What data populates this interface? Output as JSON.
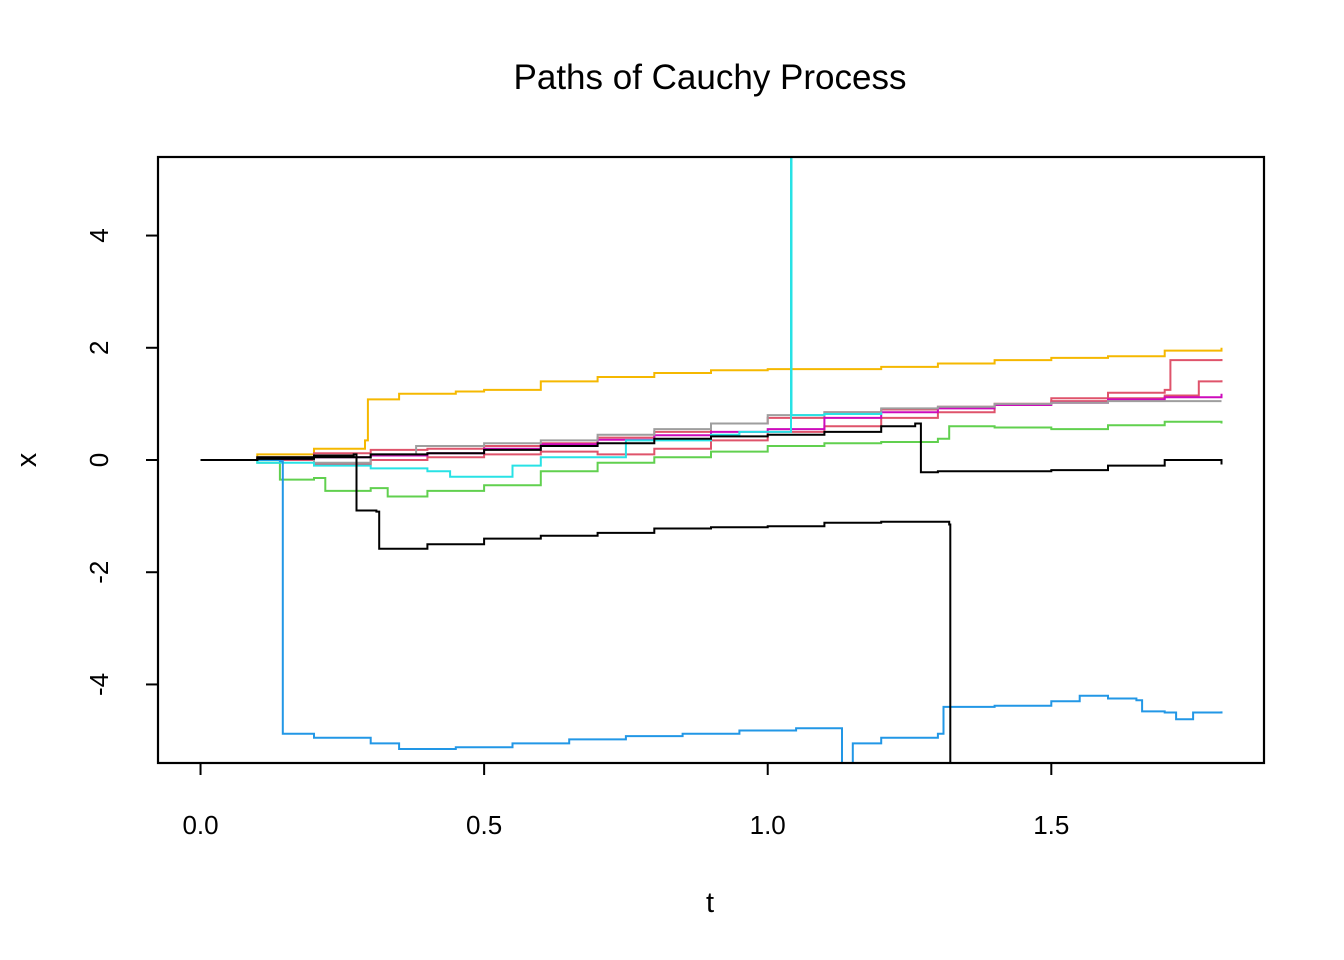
{
  "chart_data": {
    "type": "line",
    "title": "Paths of Cauchy Process",
    "xlabel": "t",
    "ylabel": "x",
    "xlim": [
      -0.075,
      1.875
    ],
    "ylim": [
      -5.4,
      5.4
    ],
    "xticks": [
      0.0,
      0.5,
      1.0,
      1.5
    ],
    "xtick_labels": [
      "0.0",
      "0.5",
      "1.0",
      "1.5"
    ],
    "yticks": [
      -4,
      -2,
      0,
      2,
      4
    ],
    "ytick_labels": [
      "-4",
      "-2",
      "0",
      "2",
      "4"
    ],
    "grid": false,
    "legend": "none",
    "series": [
      {
        "color": "#F5B800",
        "steps": [
          [
            0,
            0
          ],
          [
            0.1,
            0.1
          ],
          [
            0.2,
            0.2
          ],
          [
            0.29,
            0.35
          ],
          [
            0.295,
            1.08
          ],
          [
            0.35,
            1.18
          ],
          [
            0.45,
            1.22
          ],
          [
            0.5,
            1.25
          ],
          [
            0.6,
            1.4
          ],
          [
            0.7,
            1.48
          ],
          [
            0.8,
            1.55
          ],
          [
            0.9,
            1.6
          ],
          [
            1.0,
            1.62
          ],
          [
            1.1,
            1.62
          ],
          [
            1.2,
            1.66
          ],
          [
            1.3,
            1.72
          ],
          [
            1.4,
            1.78
          ],
          [
            1.5,
            1.82
          ],
          [
            1.6,
            1.85
          ],
          [
            1.7,
            1.95
          ],
          [
            1.8,
            2.0
          ]
        ]
      },
      {
        "color": "#DF536B",
        "steps": [
          [
            0,
            0
          ],
          [
            0.1,
            0.05
          ],
          [
            0.2,
            0.12
          ],
          [
            0.3,
            0.18
          ],
          [
            0.4,
            0.2
          ],
          [
            0.5,
            0.25
          ],
          [
            0.6,
            0.3
          ],
          [
            0.7,
            0.4
          ],
          [
            0.8,
            0.5
          ],
          [
            0.9,
            0.65
          ],
          [
            1.0,
            0.75
          ],
          [
            1.1,
            0.85
          ],
          [
            1.2,
            0.9
          ],
          [
            1.3,
            0.95
          ],
          [
            1.4,
            1.0
          ],
          [
            1.5,
            1.1
          ],
          [
            1.6,
            1.2
          ],
          [
            1.7,
            1.25
          ],
          [
            1.71,
            1.78
          ],
          [
            1.8,
            1.8
          ]
        ]
      },
      {
        "color": "#DF536B",
        "steps": [
          [
            0,
            0
          ],
          [
            0.1,
            0.0
          ],
          [
            0.2,
            -0.08
          ],
          [
            0.3,
            0.0
          ],
          [
            0.4,
            0.05
          ],
          [
            0.5,
            0.1
          ],
          [
            0.6,
            0.15
          ],
          [
            0.7,
            0.1
          ],
          [
            0.8,
            0.2
          ],
          [
            0.9,
            0.35
          ],
          [
            1.0,
            0.5
          ],
          [
            1.1,
            0.6
          ],
          [
            1.2,
            0.75
          ],
          [
            1.3,
            0.85
          ],
          [
            1.4,
            1.0
          ],
          [
            1.5,
            1.05
          ],
          [
            1.6,
            1.1
          ],
          [
            1.7,
            1.15
          ],
          [
            1.76,
            1.4
          ],
          [
            1.8,
            1.42
          ]
        ]
      },
      {
        "color": "#CD0BBC",
        "steps": [
          [
            0,
            0
          ],
          [
            0.1,
            0.02
          ],
          [
            0.2,
            0.05
          ],
          [
            0.3,
            0.08
          ],
          [
            0.4,
            0.12
          ],
          [
            0.5,
            0.2
          ],
          [
            0.6,
            0.28
          ],
          [
            0.7,
            0.36
          ],
          [
            0.8,
            0.44
          ],
          [
            0.9,
            0.5
          ],
          [
            1.0,
            0.55
          ],
          [
            1.1,
            0.75
          ],
          [
            1.2,
            0.85
          ],
          [
            1.3,
            0.92
          ],
          [
            1.4,
            0.98
          ],
          [
            1.5,
            1.02
          ],
          [
            1.6,
            1.08
          ],
          [
            1.7,
            1.12
          ],
          [
            1.8,
            1.18
          ]
        ]
      },
      {
        "color": "#9E9E9E",
        "steps": [
          [
            0,
            0
          ],
          [
            0.1,
            0.05
          ],
          [
            0.2,
            -0.05
          ],
          [
            0.3,
            0.1
          ],
          [
            0.38,
            0.25
          ],
          [
            0.5,
            0.3
          ],
          [
            0.6,
            0.35
          ],
          [
            0.7,
            0.45
          ],
          [
            0.8,
            0.55
          ],
          [
            0.9,
            0.65
          ],
          [
            1.0,
            0.8
          ],
          [
            1.1,
            0.85
          ],
          [
            1.2,
            0.92
          ],
          [
            1.3,
            0.95
          ],
          [
            1.4,
            1.0
          ],
          [
            1.5,
            1.02
          ],
          [
            1.6,
            1.05
          ],
          [
            1.7,
            1.05
          ],
          [
            1.8,
            1.05
          ]
        ]
      },
      {
        "color": "#61D04F",
        "steps": [
          [
            0,
            0
          ],
          [
            0.1,
            -0.05
          ],
          [
            0.14,
            -0.35
          ],
          [
            0.2,
            -0.32
          ],
          [
            0.22,
            -0.55
          ],
          [
            0.3,
            -0.5
          ],
          [
            0.33,
            -0.65
          ],
          [
            0.4,
            -0.55
          ],
          [
            0.5,
            -0.45
          ],
          [
            0.6,
            -0.2
          ],
          [
            0.7,
            -0.05
          ],
          [
            0.8,
            0.05
          ],
          [
            0.9,
            0.15
          ],
          [
            1.0,
            0.25
          ],
          [
            1.1,
            0.3
          ],
          [
            1.2,
            0.32
          ],
          [
            1.3,
            0.38
          ],
          [
            1.32,
            0.6
          ],
          [
            1.4,
            0.58
          ],
          [
            1.5,
            0.55
          ],
          [
            1.6,
            0.62
          ],
          [
            1.7,
            0.68
          ],
          [
            1.8,
            0.65
          ]
        ]
      },
      {
        "color": "#28E2E5",
        "steps": [
          [
            0,
            0
          ],
          [
            0.1,
            -0.05
          ],
          [
            0.2,
            -0.1
          ],
          [
            0.3,
            -0.15
          ],
          [
            0.4,
            -0.2
          ],
          [
            0.44,
            -0.3
          ],
          [
            0.5,
            -0.3
          ],
          [
            0.55,
            -0.1
          ],
          [
            0.6,
            0.05
          ],
          [
            0.75,
            0.35
          ],
          [
            0.9,
            0.45
          ],
          [
            0.95,
            0.5
          ],
          [
            1.04,
            0.5
          ],
          [
            1.041,
            7.0
          ],
          [
            1.042,
            0.8
          ],
          [
            1.1,
            0.82
          ],
          [
            1.2,
            0.85
          ]
        ]
      },
      {
        "color": "#2297E6",
        "steps": [
          [
            0,
            0
          ],
          [
            0.14,
            -0.02
          ],
          [
            0.145,
            -4.88
          ],
          [
            0.2,
            -4.95
          ],
          [
            0.3,
            -5.05
          ],
          [
            0.35,
            -5.15
          ],
          [
            0.45,
            -5.12
          ],
          [
            0.55,
            -5.05
          ],
          [
            0.65,
            -4.98
          ],
          [
            0.75,
            -4.92
          ],
          [
            0.85,
            -4.88
          ],
          [
            0.95,
            -4.82
          ],
          [
            1.05,
            -4.78
          ],
          [
            1.13,
            -4.78
          ],
          [
            1.131,
            -6.0
          ],
          [
            1.15,
            -5.05
          ],
          [
            1.2,
            -4.95
          ],
          [
            1.3,
            -4.88
          ],
          [
            1.31,
            -4.4
          ],
          [
            1.4,
            -4.38
          ],
          [
            1.5,
            -4.3
          ],
          [
            1.55,
            -4.2
          ],
          [
            1.6,
            -4.25
          ],
          [
            1.65,
            -4.28
          ],
          [
            1.66,
            -4.48
          ],
          [
            1.7,
            -4.5
          ],
          [
            1.72,
            -4.62
          ],
          [
            1.75,
            -4.5
          ],
          [
            1.8,
            -4.48
          ]
        ]
      },
      {
        "color": "#000000",
        "steps": [
          [
            0,
            0
          ],
          [
            0.1,
            0.05
          ],
          [
            0.2,
            0.08
          ],
          [
            0.27,
            0.1
          ],
          [
            0.275,
            -0.9
          ],
          [
            0.31,
            -0.92
          ],
          [
            0.315,
            -1.58
          ],
          [
            0.4,
            -1.5
          ],
          [
            0.5,
            -1.4
          ],
          [
            0.6,
            -1.35
          ],
          [
            0.7,
            -1.3
          ],
          [
            0.8,
            -1.22
          ],
          [
            0.9,
            -1.2
          ],
          [
            1.0,
            -1.18
          ],
          [
            1.1,
            -1.12
          ],
          [
            1.2,
            -1.1
          ],
          [
            1.32,
            -1.15
          ],
          [
            1.322,
            -6.0
          ]
        ]
      },
      {
        "color": "#000000",
        "steps": [
          [
            0,
            0
          ],
          [
            0.1,
            0.02
          ],
          [
            0.2,
            0.05
          ],
          [
            0.3,
            0.1
          ],
          [
            0.4,
            0.12
          ],
          [
            0.5,
            0.18
          ],
          [
            0.6,
            0.25
          ],
          [
            0.7,
            0.3
          ],
          [
            0.8,
            0.38
          ],
          [
            0.9,
            0.42
          ],
          [
            1.0,
            0.45
          ],
          [
            1.1,
            0.5
          ],
          [
            1.2,
            0.6
          ],
          [
            1.26,
            0.65
          ],
          [
            1.27,
            -0.22
          ],
          [
            1.3,
            -0.2
          ],
          [
            1.4,
            -0.2
          ],
          [
            1.5,
            -0.18
          ],
          [
            1.6,
            -0.1
          ],
          [
            1.7,
            0.0
          ],
          [
            1.8,
            -0.08
          ]
        ]
      }
    ]
  }
}
